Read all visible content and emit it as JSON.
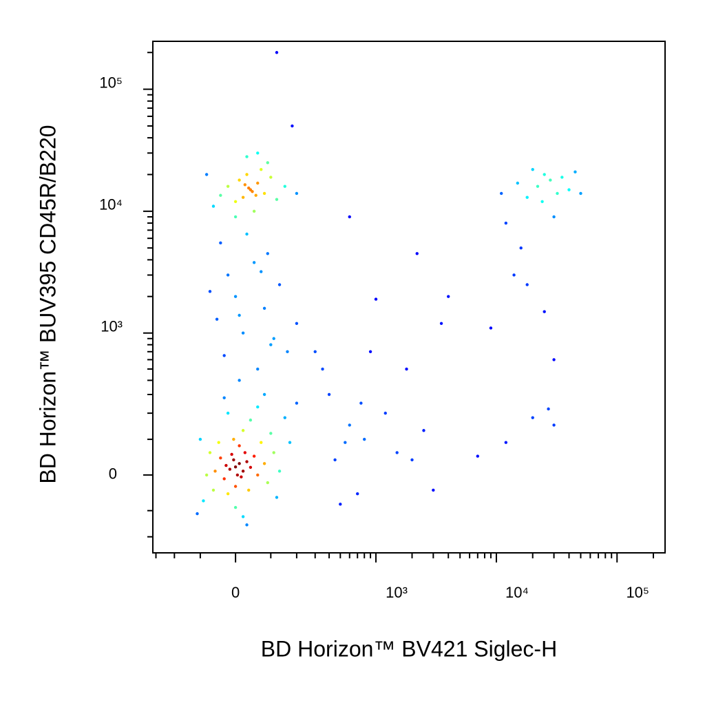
{
  "chart_data": {
    "type": "scatter",
    "xlabel": "BD Horizon™ BV421 Siglec-H",
    "ylabel": "BD Horizon™ BUV395 CD45R/B220",
    "scale": "biexponential",
    "colormap": "jet",
    "xlim": [
      -320,
      250000
    ],
    "ylim": [
      -284,
      247000
    ],
    "xticks": [
      {
        "value": 0,
        "label": "0"
      },
      {
        "value": 1000,
        "label": "10³"
      },
      {
        "value": 10000,
        "label": "10⁴"
      },
      {
        "value": 100000,
        "label": "10⁵"
      }
    ],
    "yticks": [
      {
        "value": 0,
        "label": "0"
      },
      {
        "value": 1000,
        "label": "10³"
      },
      {
        "value": 10000,
        "label": "10⁴"
      },
      {
        "value": 100000,
        "label": "10⁵"
      }
    ],
    "xminorticks": [
      -300,
      -200,
      -100,
      100,
      200,
      300,
      400,
      500,
      600,
      700,
      800,
      900,
      2000,
      3000,
      4000,
      5000,
      6000,
      7000,
      8000,
      9000,
      20000,
      30000,
      40000,
      50000,
      60000,
      70000,
      80000,
      90000,
      200000
    ],
    "yminorticks": [
      -200,
      -100,
      100,
      200,
      300,
      400,
      500,
      600,
      700,
      800,
      900,
      2000,
      3000,
      4000,
      5000,
      6000,
      7000,
      8000,
      9000,
      20000,
      30000,
      40000,
      50000,
      60000,
      70000,
      80000,
      90000,
      200000
    ],
    "x": [
      0,
      10,
      -15,
      20,
      -5,
      15,
      -25,
      30,
      5,
      -10,
      25,
      -30,
      40,
      0,
      -40,
      50,
      10,
      -20,
      60,
      -55,
      35,
      -5,
      70,
      -60,
      80,
      20,
      -45,
      90,
      -70,
      0,
      100,
      40,
      -80,
      110,
      -20,
      60,
      -90,
      130,
      -100,
      20,
      150,
      80,
      -30,
      170,
      120,
      200,
      -110,
      30,
      10,
      60,
      -30,
      100,
      20,
      -50,
      80,
      0,
      130,
      -20,
      50,
      90,
      -40,
      30,
      160,
      200,
      -70,
      110,
      70,
      10,
      40,
      20,
      60,
      0,
      80,
      30,
      -20,
      100,
      50,
      -40,
      70,
      10,
      120,
      -60,
      90,
      150,
      0,
      60,
      -80,
      200,
      30,
      45,
      25,
      55,
      35,
      400,
      600,
      350,
      800,
      1200,
      1500,
      2000,
      900,
      1800,
      3500,
      4000,
      2500,
      700,
      500,
      3000,
      1000,
      2200,
      600,
      300,
      450,
      550,
      750,
      7000,
      9000,
      20000,
      30000,
      27000,
      12000,
      22000,
      28000,
      18000,
      25000,
      32000,
      15000,
      35000,
      24000,
      20000,
      40000,
      30000,
      12000,
      16000,
      45000,
      50000,
      14000,
      25000,
      18000,
      30000,
      11000,
      120,
      180
    ],
    "y": [
      21,
      30,
      15,
      10,
      40,
      -5,
      25,
      35,
      0,
      55,
      60,
      -10,
      20,
      -30,
      45,
      50,
      80,
      -50,
      0,
      10,
      -40,
      100,
      90,
      -40,
      30,
      130,
      90,
      -20,
      60,
      -90,
      120,
      170,
      0,
      60,
      200,
      230,
      -70,
      10,
      100,
      -120,
      180,
      300,
      280,
      90,
      -60,
      250,
      -110,
      -150,
      400,
      500,
      650,
      800,
      1000,
      1300,
      1600,
      2000,
      2500,
      3000,
      3800,
      4500,
      5500,
      6500,
      700,
      1200,
      2200,
      900,
      3200,
      1400,
      15000,
      13000,
      17000,
      12000,
      14000,
      20000,
      16000,
      19000,
      10000,
      13500,
      22000,
      18000,
      12500,
      11000,
      25000,
      16000,
      9000,
      30000,
      20000,
      14000,
      28000,
      14500,
      16500,
      13500,
      15500,
      300,
      150,
      500,
      100,
      200,
      60,
      40,
      700,
      500,
      1200,
      2000,
      130,
      -50,
      -80,
      -40,
      1900,
      4500,
      9000,
      700,
      40,
      90,
      250,
      50,
      1100,
      180,
      150,
      220,
      90,
      16000,
      18000,
      13000,
      20000,
      14000,
      17000,
      19000,
      12000,
      22000,
      15000,
      9000,
      8000,
      5000,
      21000,
      14000,
      3000,
      1500,
      2500,
      600,
      14000,
      200000,
      50000
    ]
  }
}
